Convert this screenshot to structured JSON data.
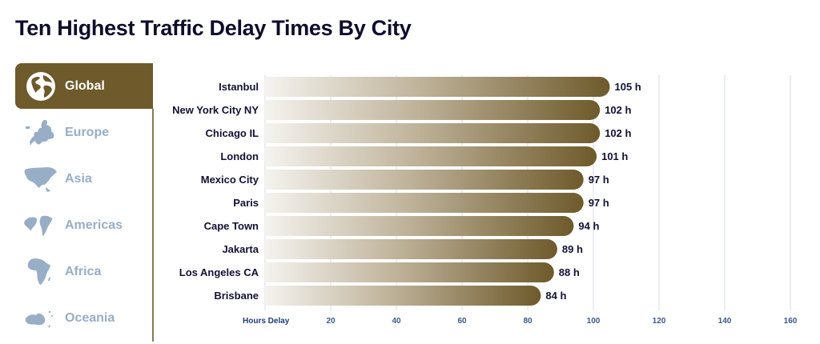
{
  "title": "Ten Highest Traffic Delay Times By City",
  "sidebar": {
    "items": [
      {
        "label": "Global",
        "icon": "globe-icon",
        "active": true
      },
      {
        "label": "Europe",
        "icon": "europe-map-icon",
        "active": false
      },
      {
        "label": "Asia",
        "icon": "asia-map-icon",
        "active": false
      },
      {
        "label": "Americas",
        "icon": "americas-map-icon",
        "active": false
      },
      {
        "label": "Africa",
        "icon": "africa-map-icon",
        "active": false
      },
      {
        "label": "Oceania",
        "icon": "oceania-map-icon",
        "active": false
      }
    ]
  },
  "colors": {
    "active_tab": "#6e5a2b",
    "bar_start": "#f4f2ee",
    "bar_end": "#6e5a2b",
    "inactive_label": "#97aec6",
    "text_dark": "#111133",
    "gridline": "#d5dbe6"
  },
  "chart_data": {
    "type": "bar",
    "orientation": "horizontal",
    "title": "Ten Highest Traffic Delay Times By City",
    "xlabel": "Hours Delay",
    "ylabel": "",
    "categories": [
      "Istanbul",
      "New York City NY",
      "Chicago IL",
      "London",
      "Mexico City",
      "Paris",
      "Cape Town",
      "Jakarta",
      "Los Angeles CA",
      "Brisbane"
    ],
    "values": [
      105,
      102,
      102,
      101,
      97,
      97,
      94,
      89,
      88,
      84
    ],
    "value_labels": [
      "105 h",
      "102 h",
      "102 h",
      "101 h",
      "97 h",
      "97 h",
      "94 h",
      "89 h",
      "88 h",
      "84 h"
    ],
    "xticks": [
      20,
      40,
      60,
      80,
      100,
      120,
      140,
      160
    ],
    "xlim": [
      0,
      160
    ],
    "grid": true,
    "legend": "none"
  }
}
